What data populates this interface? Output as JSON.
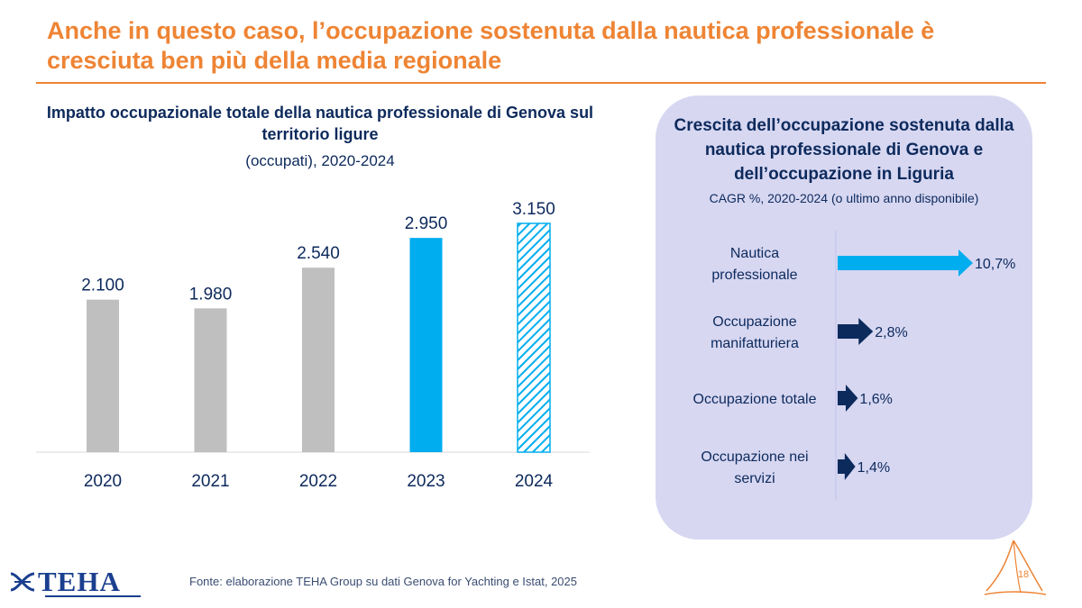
{
  "slide": {
    "title": "Anche in questo caso, l’occupazione sostenuta dalla nautica professionale è cresciuta ben più della media regionale",
    "page_number": "18",
    "source": "Fonte: elaborazione TEHA Group su dati Genova for Yachting e Istat, 2025",
    "logo_text": "TEHA",
    "colors": {
      "accent": "#ee8434",
      "navy": "#0d2a5c",
      "highlight": "#00adef",
      "grey_bar": "#bfbfbf",
      "panel": "#d7d7f2"
    }
  },
  "chart_data": [
    {
      "type": "bar",
      "title": "Impatto occupazionale totale della nautica professionale di Genova sul territorio ligure",
      "subtitle": "(occupati), 2020-2024",
      "categories": [
        "2020",
        "2021",
        "2022",
        "2023",
        "2024"
      ],
      "values": [
        2100,
        1980,
        2540,
        2950,
        3150
      ],
      "value_labels": [
        "2.100",
        "1.980",
        "2.540",
        "2.950",
        "3.150"
      ],
      "bar_styles": [
        "grey",
        "grey",
        "grey",
        "highlight",
        "hatched"
      ],
      "ylim": [
        0,
        3150
      ],
      "grid": false,
      "legend": "none"
    },
    {
      "type": "bar",
      "orientation": "horizontal",
      "title": "Crescita dell’occupazione sostenuta dalla nautica professionale di Genova e dell’occupazione in Liguria",
      "subtitle": "CAGR %, 2020-2024 (o ultimo anno disponibile)",
      "categories": [
        [
          "Nautica",
          "professionale"
        ],
        [
          "Occupazione",
          "manifatturiera"
        ],
        [
          "Occupazione totale"
        ],
        [
          "Occupazione nei",
          "servizi"
        ]
      ],
      "values": [
        10.7,
        2.8,
        1.6,
        1.4
      ],
      "value_labels": [
        "10,7%",
        "2,8%",
        "1,6%",
        "1,4%"
      ],
      "bar_colors": [
        "#00adef",
        "#0d2a5c",
        "#0d2a5c",
        "#0d2a5c"
      ],
      "xlim": [
        0,
        10.7
      ],
      "grid": false,
      "legend": "none"
    }
  ]
}
